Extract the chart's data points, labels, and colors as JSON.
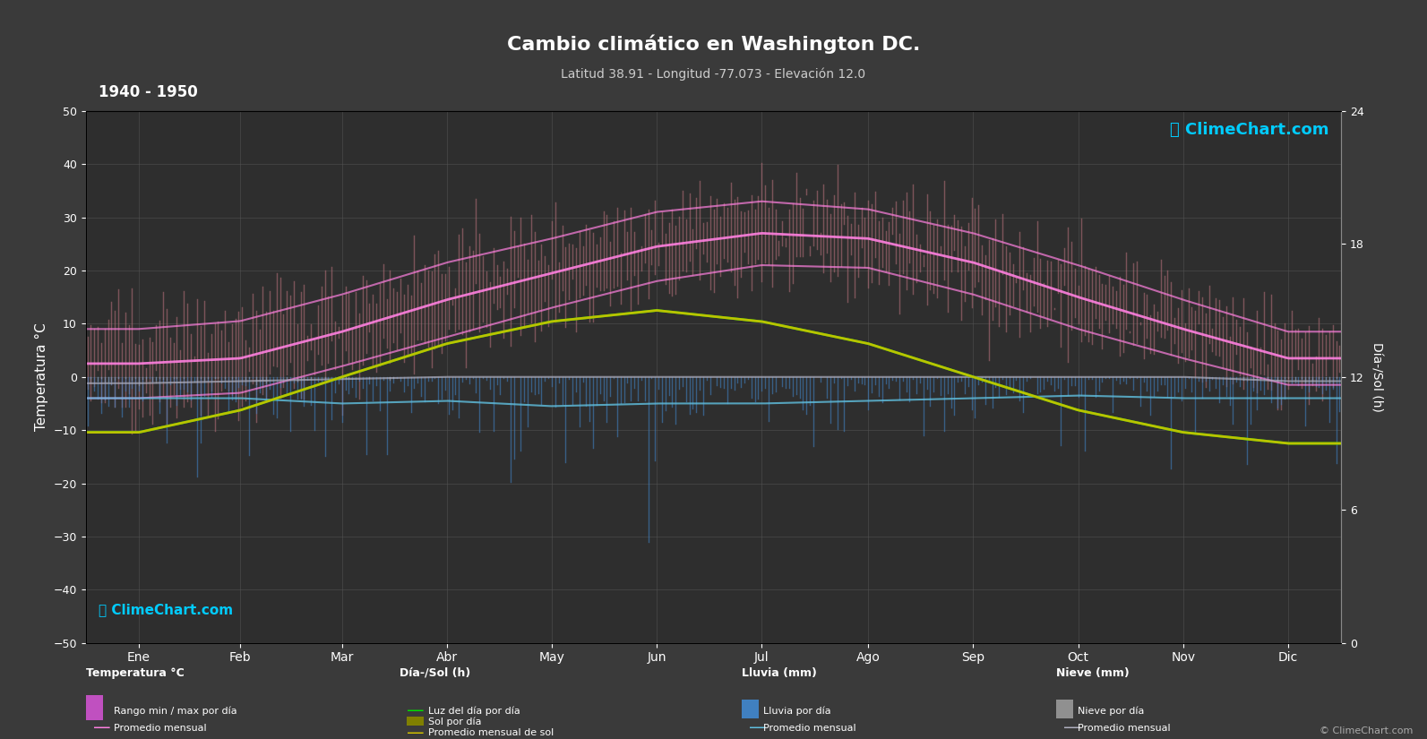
{
  "title": "Cambio climático en Washington DC.",
  "subtitle": "Latitud 38.91 - Longitud -77.073 - Elevación 12.0",
  "period": "1940 - 1950",
  "background_color": "#3a3a3a",
  "plot_bg_color": "#2e2e2e",
  "months": [
    "Ene",
    "Feb",
    "Mar",
    "Abr",
    "May",
    "Jun",
    "Jul",
    "Ago",
    "Sep",
    "Oct",
    "Nov",
    "Dic"
  ],
  "temp_ylim": [
    -50,
    50
  ],
  "rain_ylim": [
    -40,
    0
  ],
  "sun_ylim": [
    0,
    24
  ],
  "temp_avg_monthly": [
    2.5,
    3.5,
    8.5,
    14.5,
    19.5,
    24.5,
    27.0,
    26.0,
    21.5,
    15.0,
    9.0,
    3.5
  ],
  "temp_min_monthly": [
    -4.0,
    -3.0,
    2.0,
    7.5,
    13.0,
    18.0,
    21.0,
    20.5,
    15.5,
    9.0,
    3.5,
    -1.5
  ],
  "temp_max_monthly": [
    9.0,
    10.5,
    15.5,
    21.5,
    26.0,
    31.0,
    33.0,
    31.5,
    27.0,
    21.0,
    14.5,
    8.5
  ],
  "sun_hours_monthly": [
    9.5,
    10.5,
    12.0,
    13.5,
    14.5,
    15.0,
    14.5,
    13.5,
    12.0,
    10.5,
    9.5,
    9.0
  ],
  "daylight_monthly": [
    9.5,
    10.5,
    12.0,
    13.5,
    14.5,
    15.0,
    14.5,
    13.5,
    12.0,
    10.5,
    9.5,
    9.0
  ],
  "rain_avg_monthly": [
    8,
    8,
    10,
    9,
    11,
    10,
    10,
    9,
    8,
    7,
    8,
    8
  ],
  "snow_avg_monthly": [
    3,
    2,
    1,
    0,
    0,
    0,
    0,
    0,
    0,
    0,
    0,
    2
  ],
  "watermark": "ClimeChart.com",
  "copyright": "© ClimeChart.com"
}
